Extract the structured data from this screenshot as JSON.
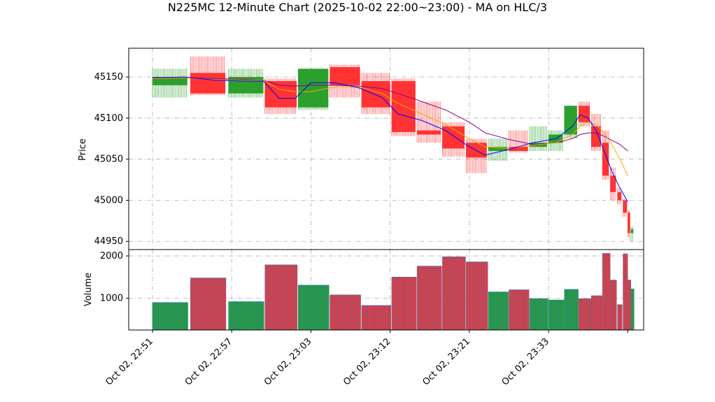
{
  "chart_data": {
    "title": "N225MC 12-Minute Chart (2025-10-02 22:00~23:00) - MA on HLC/3",
    "type": "candlestick",
    "price_panel": {
      "ylabel": "Price",
      "ylim": [
        44940,
        45185
      ],
      "yticks": [
        44950,
        45000,
        45050,
        45100,
        45150
      ]
    },
    "volume_panel": {
      "ylabel": "Volume",
      "ylim": [
        250,
        2150
      ],
      "yticks": [
        1000,
        2000
      ]
    },
    "x_range": [
      -2,
      63
    ],
    "x_ticks": [
      {
        "pos": 1,
        "label": "Oct 02, 22:51"
      },
      {
        "pos": 11,
        "label": "Oct 02, 22:57"
      },
      {
        "pos": 21,
        "label": "Oct 02, 23:03"
      },
      {
        "pos": 31,
        "label": "Oct 02, 23:12"
      },
      {
        "pos": 41,
        "label": "Oct 02, 23:21"
      },
      {
        "pos": 51,
        "label": "Oct 02, 23:33"
      },
      {
        "pos": 61,
        "label": ""
      }
    ],
    "colors": {
      "up": "#2ca02c",
      "down": "#ff3333",
      "ma_short": "#0000ff",
      "ma_mid": "#ffa500",
      "ma_long": "#8b008b",
      "volume_edge": "#1f77b4"
    },
    "candles": [
      {
        "start": 1,
        "end": 5.4,
        "o": 45140,
        "h": 45160,
        "l": 45125,
        "c": 45150,
        "v": 900
      },
      {
        "start": 5.8,
        "end": 10.2,
        "o": 45155,
        "h": 45175,
        "l": 45128,
        "c": 45130,
        "v": 1480
      },
      {
        "start": 10.6,
        "end": 15,
        "o": 45130,
        "h": 45160,
        "l": 45125,
        "c": 45150,
        "v": 920
      },
      {
        "start": 15.2,
        "end": 19.2,
        "o": 45145,
        "h": 45148,
        "l": 45105,
        "c": 45113,
        "v": 1790
      },
      {
        "start": 19.4,
        "end": 23.2,
        "o": 45113,
        "h": 45160,
        "l": 45110,
        "c": 45160,
        "v": 1310
      },
      {
        "start": 23.4,
        "end": 27.2,
        "o": 45162,
        "h": 45165,
        "l": 45125,
        "c": 45140,
        "v": 1080
      },
      {
        "start": 27.4,
        "end": 31.0,
        "o": 45145,
        "h": 45155,
        "l": 45105,
        "c": 45113,
        "v": 830
      },
      {
        "start": 31.2,
        "end": 34.2,
        "o": 45145,
        "h": 45148,
        "l": 45078,
        "c": 45083,
        "v": 1500
      },
      {
        "start": 34.4,
        "end": 37.4,
        "o": 45085,
        "h": 45120,
        "l": 45070,
        "c": 45080,
        "v": 1760
      },
      {
        "start": 37.6,
        "end": 40.4,
        "o": 45090,
        "h": 45095,
        "l": 45053,
        "c": 45063,
        "v": 1980
      },
      {
        "start": 40.6,
        "end": 43.2,
        "o": 45070,
        "h": 45075,
        "l": 45033,
        "c": 45052,
        "v": 1860
      },
      {
        "start": 43.4,
        "end": 45.8,
        "o": 45060,
        "h": 45075,
        "l": 45048,
        "c": 45065,
        "v": 1150
      },
      {
        "start": 46.0,
        "end": 48.4,
        "o": 45065,
        "h": 45085,
        "l": 45058,
        "c": 45060,
        "v": 1200
      },
      {
        "start": 48.6,
        "end": 50.8,
        "o": 45065,
        "h": 45090,
        "l": 45060,
        "c": 45070,
        "v": 990
      },
      {
        "start": 51.0,
        "end": 52.8,
        "o": 45070,
        "h": 45085,
        "l": 45060,
        "c": 45080,
        "v": 960
      },
      {
        "start": 53.0,
        "end": 54.6,
        "o": 45080,
        "h": 45115,
        "l": 45075,
        "c": 45115,
        "v": 1210
      },
      {
        "start": 54.8,
        "end": 56.2,
        "o": 45115,
        "h": 45120,
        "l": 45090,
        "c": 45095,
        "v": 990
      },
      {
        "start": 56.4,
        "end": 57.6,
        "o": 45090,
        "h": 45105,
        "l": 45060,
        "c": 45065,
        "v": 1060
      },
      {
        "start": 57.8,
        "end": 58.6,
        "o": 45070,
        "h": 45085,
        "l": 45025,
        "c": 45030,
        "v": 2060
      },
      {
        "start": 58.8,
        "end": 59.5,
        "o": 45030,
        "h": 45040,
        "l": 45000,
        "c": 45010,
        "v": 1430
      },
      {
        "start": 59.7,
        "end": 60.2,
        "o": 45010,
        "h": 45015,
        "l": 44995,
        "c": 45000,
        "v": 850
      },
      {
        "start": 60.4,
        "end": 60.9,
        "o": 45000,
        "h": 45002,
        "l": 44980,
        "c": 44985,
        "v": 2050
      },
      {
        "start": 61.0,
        "end": 61.3,
        "o": 44985,
        "h": 44988,
        "l": 44955,
        "c": 44960,
        "v": 1430
      },
      {
        "start": 61.4,
        "end": 61.7,
        "o": 44960,
        "h": 44968,
        "l": 44950,
        "c": 44965,
        "v": 1220
      }
    ],
    "ma_short": {
      "x": [
        1,
        5,
        9,
        13,
        15,
        17,
        19,
        21,
        24,
        27,
        30,
        32,
        35,
        38,
        41,
        43,
        46,
        49,
        52,
        54,
        55,
        56,
        57,
        58,
        59,
        60,
        61
      ],
      "y": [
        45149,
        45150,
        45146,
        45145,
        45145,
        45124,
        45124,
        45143,
        45143,
        45137,
        45125,
        45105,
        45097,
        45085,
        45065,
        45055,
        45062,
        45070,
        45075,
        45090,
        45104,
        45100,
        45085,
        45060,
        45035,
        45015,
        44998
      ]
    },
    "ma_mid": {
      "x": [
        1,
        5,
        9,
        13,
        15,
        17,
        19,
        21,
        24,
        27,
        30,
        32,
        35,
        38,
        41,
        43,
        46,
        49,
        52,
        54,
        55,
        56,
        57,
        58,
        59,
        60,
        61
      ],
      "y": [
        45148,
        45149,
        45147,
        45146,
        45146,
        45135,
        45132,
        45132,
        45138,
        45138,
        45130,
        45118,
        45105,
        45092,
        45075,
        45065,
        45063,
        45067,
        45070,
        45080,
        45090,
        45095,
        45092,
        45082,
        45068,
        45050,
        45030
      ]
    },
    "ma_long": {
      "x": [
        1,
        5,
        9,
        13,
        15,
        17,
        19,
        21,
        24,
        27,
        30,
        32,
        35,
        38,
        41,
        43,
        46,
        49,
        52,
        54,
        55,
        56,
        57,
        58,
        59,
        60,
        61
      ],
      "y": [
        45148,
        45149,
        45148,
        45147,
        45146,
        45140,
        45139,
        45140,
        45140,
        45139,
        45136,
        45130,
        45120,
        45110,
        45095,
        45082,
        45074,
        45068,
        45070,
        45075,
        45080,
        45082,
        45082,
        45078,
        45073,
        45068,
        45060
      ]
    }
  }
}
